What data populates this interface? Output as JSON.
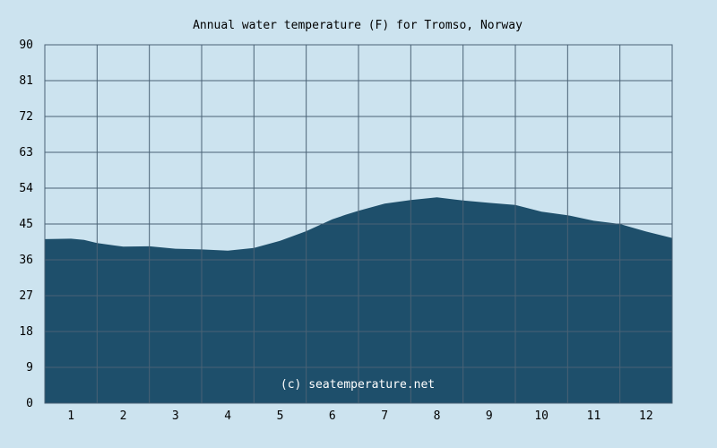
{
  "chart_data": {
    "type": "area",
    "title": "Annual water temperature (F) for Tromso, Norway",
    "xlabel": "",
    "ylabel": "",
    "ylim": [
      0,
      90
    ],
    "yticks": [
      0,
      9,
      18,
      27,
      36,
      45,
      54,
      63,
      72,
      81,
      90
    ],
    "xlim": [
      0.5,
      12.5
    ],
    "xticks": [
      1,
      2,
      3,
      4,
      5,
      6,
      7,
      8,
      9,
      10,
      11,
      12
    ],
    "grid": true,
    "colors": {
      "fill": "#1e4f6b",
      "background": "#cce3ef",
      "grid": "#4a6275"
    },
    "series": [
      {
        "x": [
          0.5,
          1.0,
          1.25,
          1.5,
          2.0,
          2.5,
          3.0,
          3.5,
          4.0,
          4.5,
          5.0,
          5.5,
          6.0,
          6.25,
          6.5,
          7.0,
          7.5,
          8.0,
          8.5,
          9.0,
          9.5,
          10.0,
          10.5,
          11.0,
          11.5,
          12.0,
          12.5
        ],
        "y": [
          41.2,
          41.3,
          41.0,
          40.2,
          39.3,
          39.4,
          38.8,
          38.6,
          38.3,
          39.0,
          40.8,
          43.2,
          46.2,
          47.3,
          48.3,
          50.1,
          51.0,
          51.7,
          50.9,
          50.3,
          49.8,
          48.1,
          47.2,
          45.8,
          45.0,
          43.1,
          41.5
        ]
      }
    ]
  },
  "watermark": "(c) seatemperature.net"
}
